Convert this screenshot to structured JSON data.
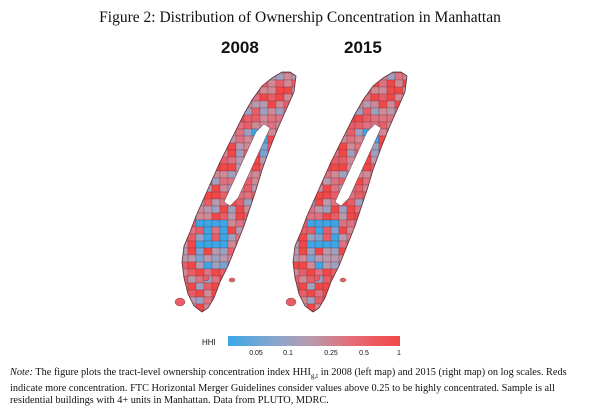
{
  "figure": {
    "title": "Figure 2: Distribution of Ownership Concentration in Manhattan"
  },
  "maps": [
    {
      "title": "2008"
    },
    {
      "title": "2015"
    }
  ],
  "legend": {
    "label": "HHI",
    "ticks": [
      "0.05",
      "0.1",
      "0.25",
      "0.5",
      "1"
    ],
    "scale": "log",
    "colors": {
      "low": "#3ba7e8",
      "mid": "#b79aae",
      "high": "#f24747"
    }
  },
  "note": {
    "lead": "Note:",
    "part1": "The figure plots the tract-level ownership concentration index HHI",
    "subscript": "g,t",
    "part2": "in 2008 (left map) and 2015 (right map) on log scales. Reds indicate more concentration. FTC Horizontal Merger Guidelines consider values above 0.25 to be highly concentrated. Sample is all residential buildings with 4+ units in Manhattan. Data from PLUTO, MDRC."
  }
}
